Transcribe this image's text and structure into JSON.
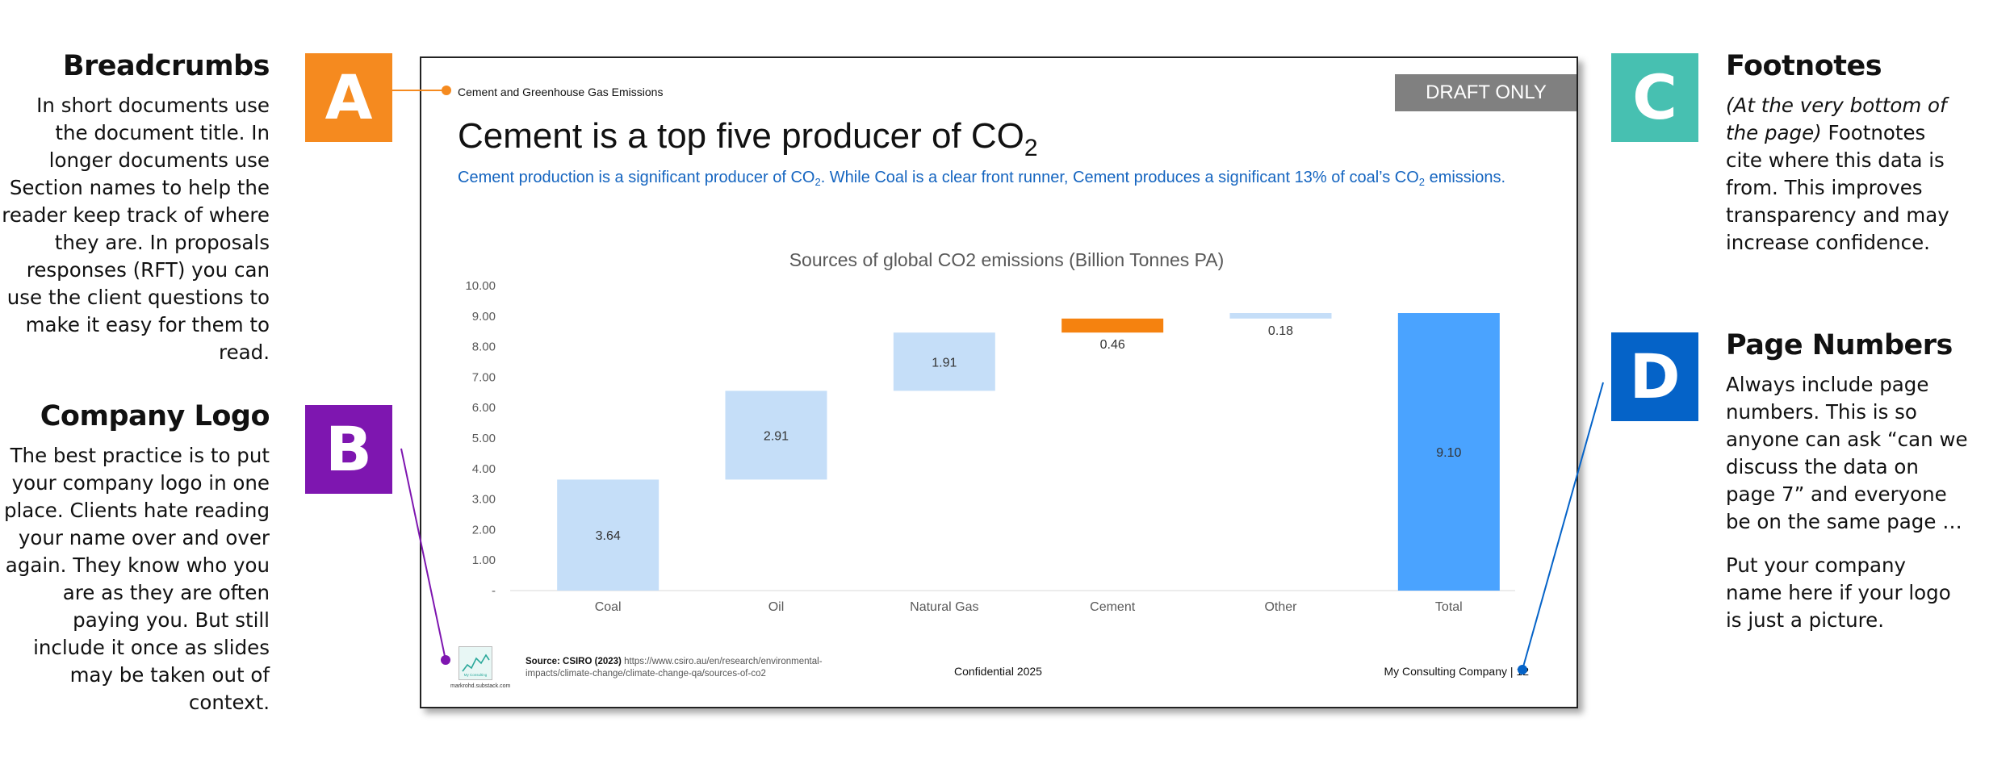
{
  "colors": {
    "badge_a": "#f58a1f",
    "badge_b": "#7e16b0",
    "badge_c": "#47c0b1",
    "badge_d": "#0563c8",
    "bar_light": "#c5def8",
    "bar_highlight": "#f5820f",
    "bar_total": "#4aa3ff",
    "subtitle_blue": "#1565c0",
    "draft_gray": "#808080"
  },
  "left_panel": {
    "breadcrumbs": {
      "title": "Breadcrumbs",
      "text": "In short documents use the document title. In longer documents use Section names to help the reader keep track of where they are. In proposals responses (RFT) you can use the client questions to make it easy for them to read."
    },
    "company_logo": {
      "title": "Company Logo",
      "text": "The best practice is to put your company logo in one place. Clients hate reading your name over and over again. They know who you are as they are often paying you. But still include it once as slides may be taken out of context."
    }
  },
  "right_panel": {
    "footnotes": {
      "title": "Footnotes",
      "intro": "(At the very bottom of the page)",
      "text": "Footnotes cite where this data is from. This improves transparency and may increase confidence."
    },
    "page_numbers": {
      "title": "Page Numbers",
      "text1": "Always include page numbers. This is so anyone can ask “can we discuss the data on page 7” and everyone be on the same page …",
      "text2": "Put your company name here if your logo is just a picture."
    }
  },
  "badges": {
    "a": "A",
    "b": "B",
    "c": "C",
    "d": "D"
  },
  "slide": {
    "breadcrumb": "Cement and Greenhouse Gas Emissions",
    "draft_label": "DRAFT ONLY",
    "title_main": "Cement is a top five producer of CO",
    "title_sub": "2",
    "subtitle_part1": "Cement production is a significant producer of CO",
    "subtitle_sub1": "2",
    "subtitle_part2": ". While Coal is a clear front runner, Cement produces a significant 13% of coal’s CO",
    "subtitle_sub2": "2",
    "subtitle_part3": " emissions.",
    "logo_text": "markrohd.substack.com",
    "logo_inner_text": "My Consulting",
    "footer_source_label": "Source: CSIRO (2023)",
    "footer_source_url": "https://www.csiro.au/en/research/environmental-impacts/climate-change/climate-change-qa/sources-of-co2",
    "confidential": "Confidential 2025",
    "company_name": "My Consulting Company",
    "page_separator": " | ",
    "page_number": "12"
  },
  "chart_data": {
    "type": "bar",
    "subtype": "waterfall",
    "title": "Sources of global CO2 emissions (Billion Tonnes PA)",
    "categories": [
      "Coal",
      "Oil",
      "Natural Gas",
      "Cement",
      "Other",
      "Total"
    ],
    "values": [
      3.64,
      2.91,
      1.91,
      0.46,
      0.18,
      9.1
    ],
    "value_labels": [
      "3.64",
      "2.91",
      "1.91",
      "0.46",
      "0.18",
      "9.10"
    ],
    "is_total": [
      false,
      false,
      false,
      false,
      false,
      true
    ],
    "highlight": [
      false,
      false,
      false,
      true,
      false,
      false
    ],
    "ylim": [
      0,
      10
    ],
    "yticks": [
      0,
      1,
      2,
      3,
      4,
      5,
      6,
      7,
      8,
      9,
      10
    ],
    "ytick_labels": [
      "-",
      "1.00",
      "2.00",
      "3.00",
      "4.00",
      "5.00",
      "6.00",
      "7.00",
      "8.00",
      "9.00",
      "10.00"
    ],
    "grid": false,
    "legend": "none"
  }
}
